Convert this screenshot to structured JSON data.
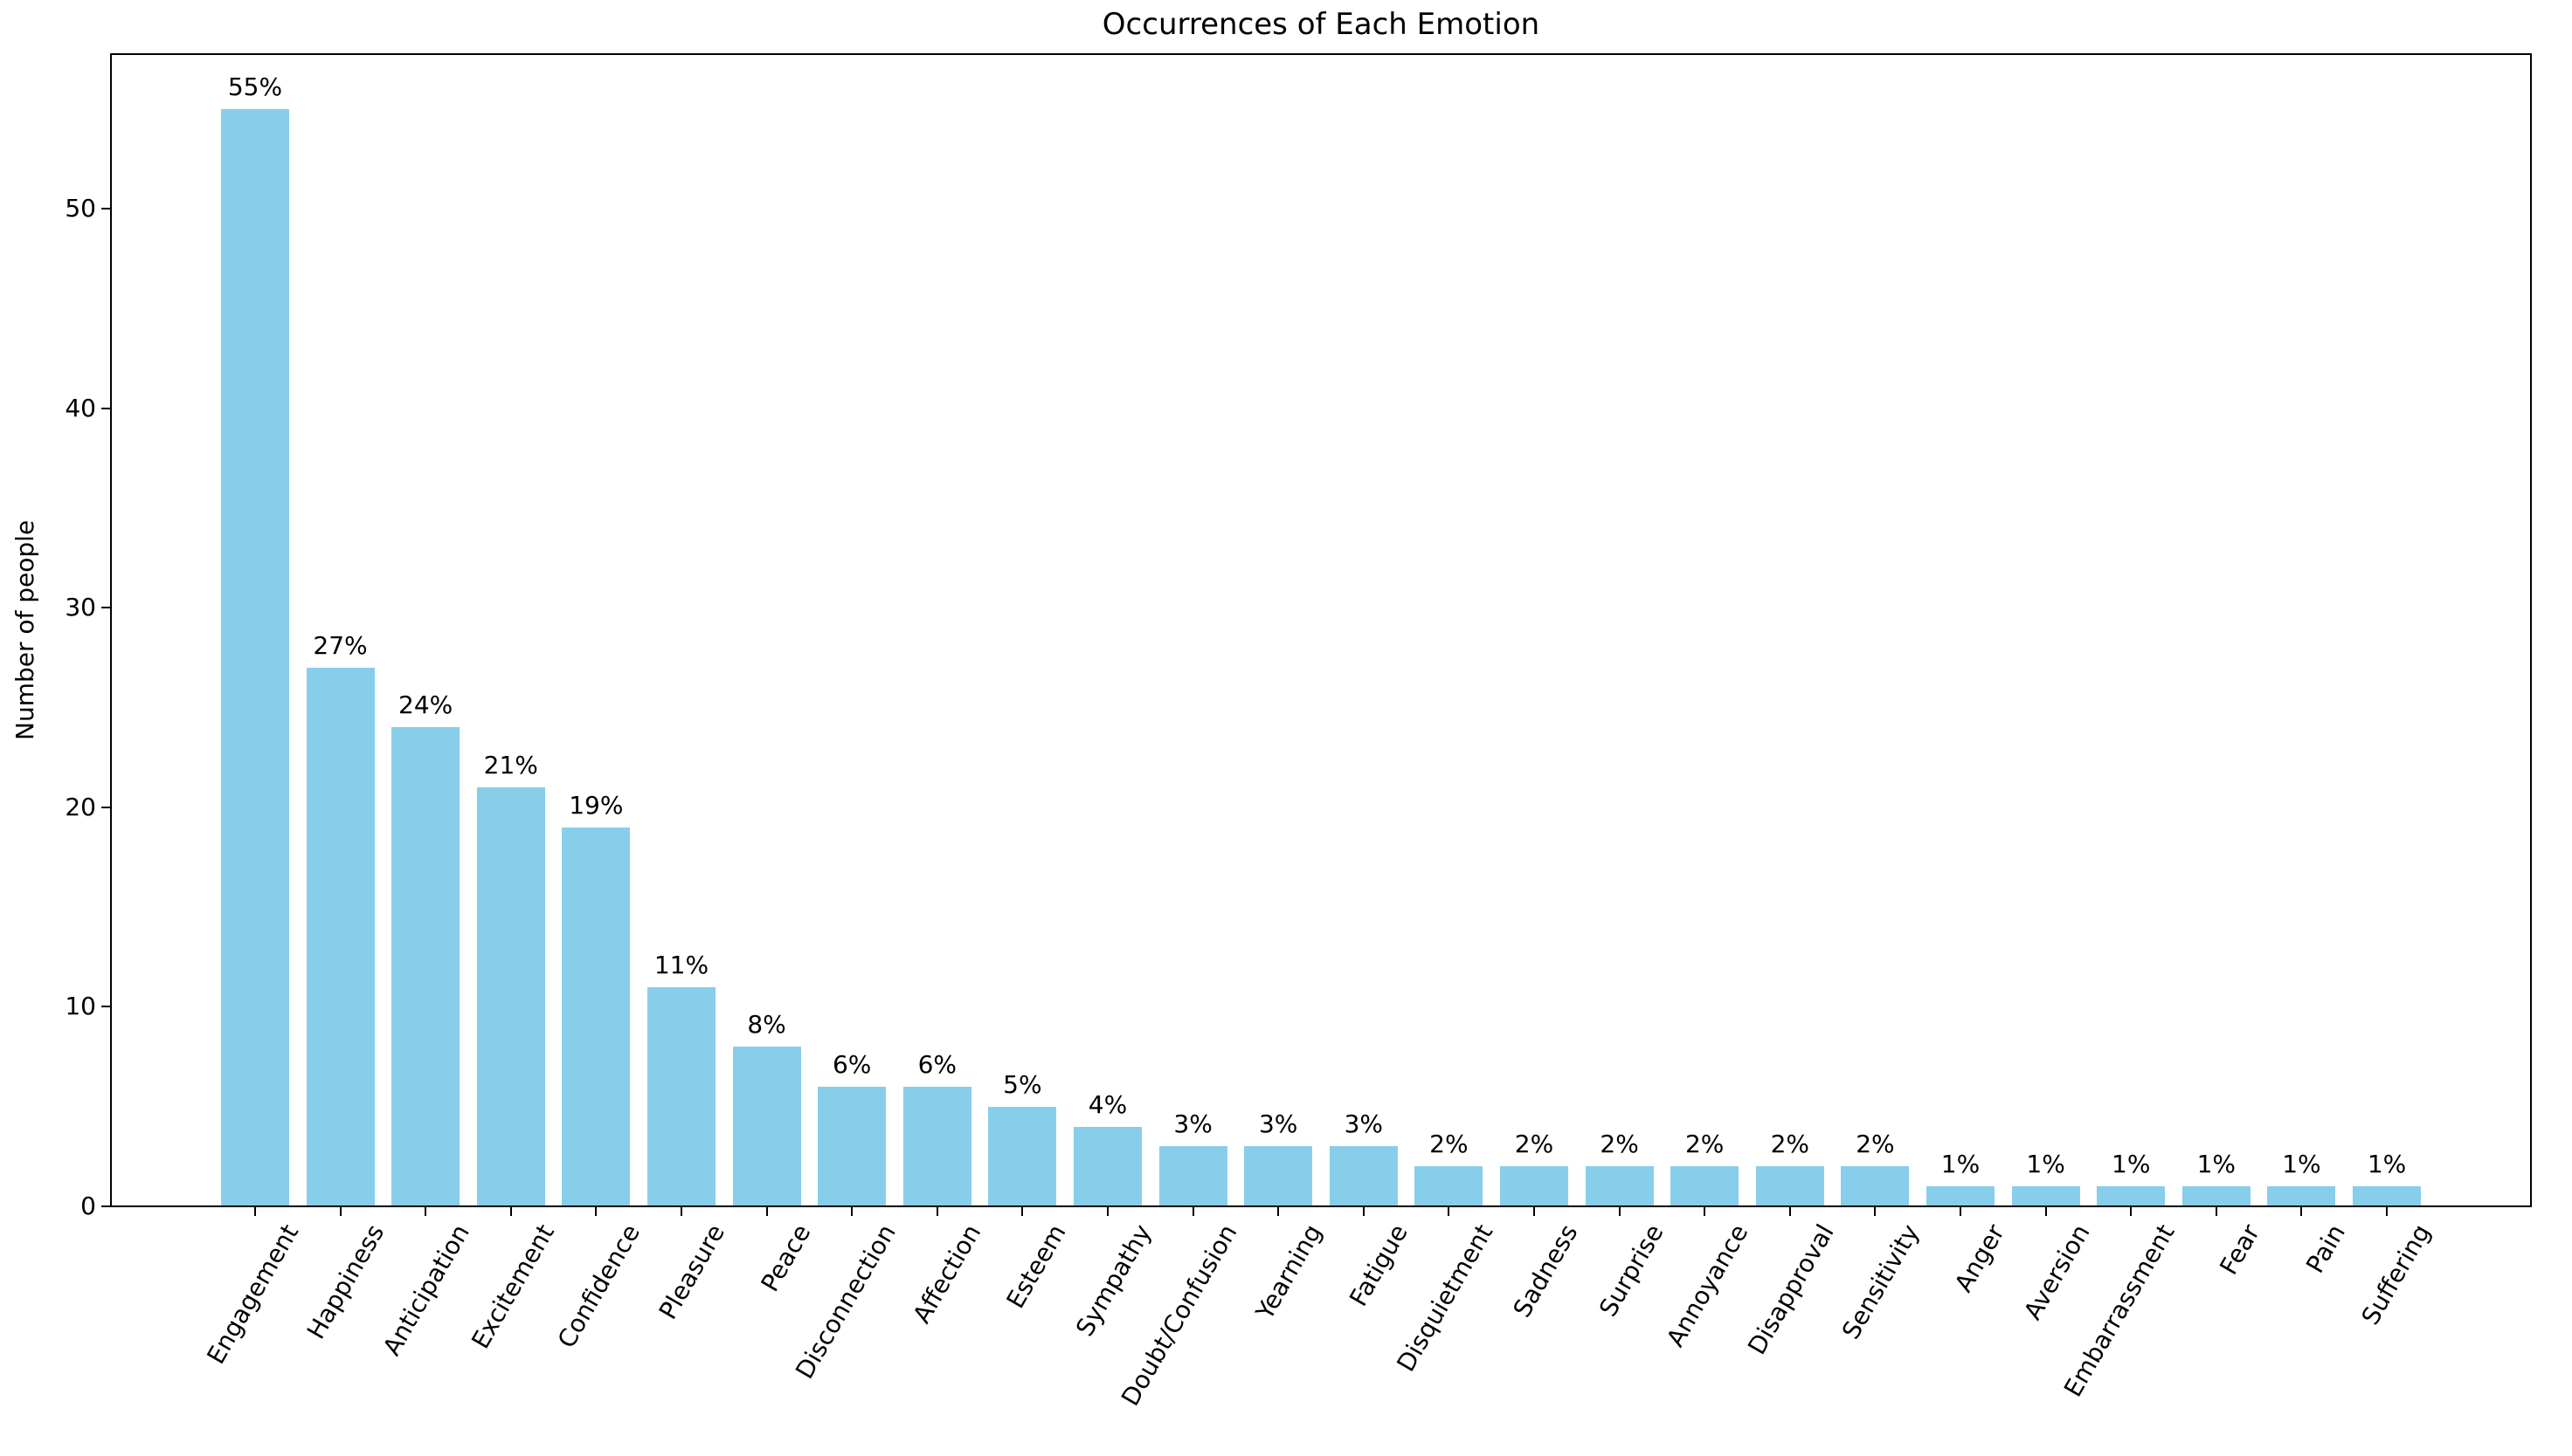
{
  "figure": {
    "title": "Occurrences of Each Emotion",
    "ylabel": "Number of people"
  },
  "chart_data": {
    "type": "bar",
    "title": "Occurrences of Each Emotion",
    "xlabel": "",
    "ylabel": "Number of people",
    "categories": [
      "Engagement",
      "Happiness",
      "Anticipation",
      "Excitement",
      "Confidence",
      "Pleasure",
      "Peace",
      "Disconnection",
      "Affection",
      "Esteem",
      "Sympathy",
      "Doubt/Confusion",
      "Yearning",
      "Fatigue",
      "Disquietment",
      "Sadness",
      "Surprise",
      "Annoyance",
      "Disapproval",
      "Sensitivity",
      "Anger",
      "Aversion",
      "Embarrassment",
      "Fear",
      "Pain",
      "Suffering"
    ],
    "values": [
      55,
      27,
      24,
      21,
      19,
      11,
      8,
      6,
      6,
      5,
      4,
      3,
      3,
      3,
      2,
      2,
      2,
      2,
      2,
      2,
      1,
      1,
      1,
      1,
      1,
      1
    ],
    "bar_labels": [
      "55%",
      "27%",
      "24%",
      "21%",
      "19%",
      "11%",
      "8%",
      "6%",
      "6%",
      "5%",
      "4%",
      "3%",
      "3%",
      "3%",
      "2%",
      "2%",
      "2%",
      "2%",
      "2%",
      "2%",
      "1%",
      "1%",
      "1%",
      "1%",
      "1%",
      "1%"
    ],
    "yticks": [
      0,
      10,
      20,
      30,
      40,
      50
    ],
    "ylim": [
      0,
      57.75
    ],
    "xtick_rotation_deg": 60,
    "grid": false,
    "legend": null,
    "bar_color": "#87CEEB",
    "axis_color": "#000000",
    "text_color": "#000000",
    "background_color": "#ffffff"
  }
}
